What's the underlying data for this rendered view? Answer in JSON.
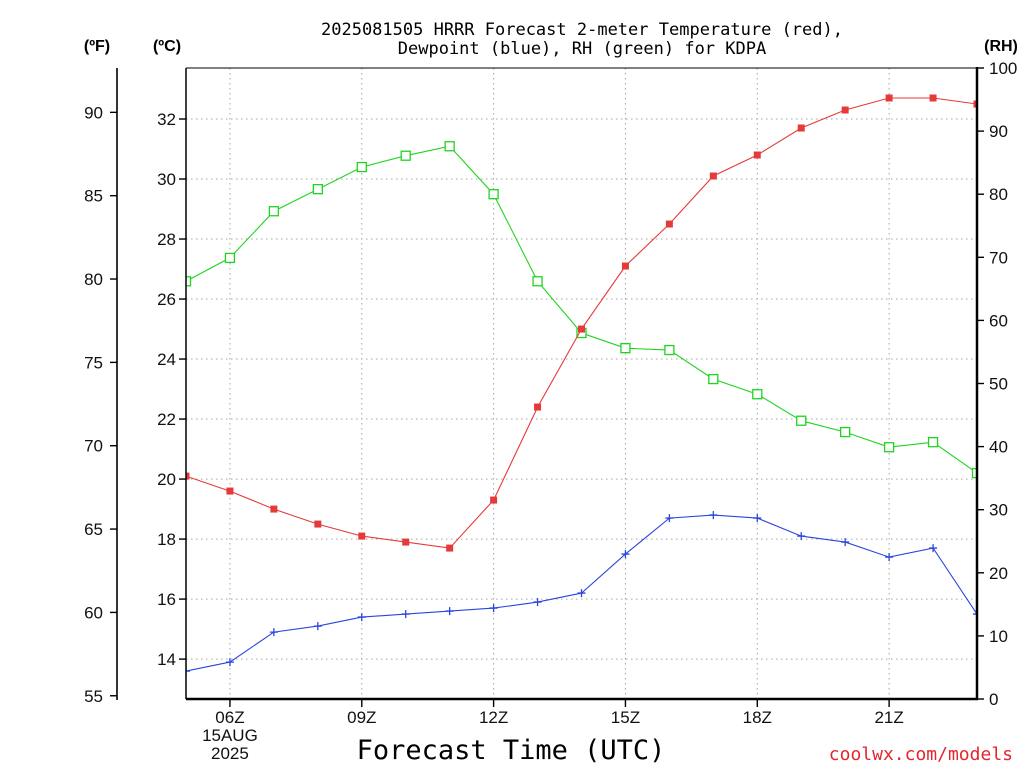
{
  "chart_data": {
    "type": "line",
    "title_lines": [
      "2025081505 HRRR Forecast 2-meter Temperature (red),",
      "Dewpoint (blue), RH (green) for KDPA"
    ],
    "xlabel": "Forecast Time (UTC)",
    "x": [
      5,
      6,
      7,
      8,
      9,
      10,
      11,
      12,
      13,
      14,
      15,
      16,
      17,
      18,
      19,
      20,
      21,
      22,
      23
    ],
    "xlim": [
      5,
      23
    ],
    "x_ticks": [
      {
        "hour": 6,
        "label": "06Z",
        "sub": [
          "15AUG",
          "2025"
        ]
      },
      {
        "hour": 9,
        "label": "09Z"
      },
      {
        "hour": 12,
        "label": "12Z"
      },
      {
        "hour": 15,
        "label": "15Z"
      },
      {
        "hour": 18,
        "label": "18Z"
      },
      {
        "hour": 21,
        "label": "21Z"
      }
    ],
    "y_left_f": {
      "label": "(ºF)",
      "ticks": [
        55,
        60,
        65,
        70,
        75,
        80,
        85,
        90
      ]
    },
    "y_left": {
      "label": "(ºC)",
      "ticks": [
        14,
        16,
        18,
        20,
        22,
        24,
        26,
        28,
        30,
        32
      ],
      "ylim": [
        12.67,
        33.7
      ]
    },
    "y_right": {
      "label": "(RH)",
      "ticks": [
        0,
        10,
        20,
        30,
        40,
        50,
        60,
        70,
        80,
        90,
        100
      ],
      "ylim": [
        0,
        100
      ]
    },
    "grid": true,
    "series": [
      {
        "color": "#e63a3a",
        "marker": "filled-square",
        "values": [
          20.1,
          19.6,
          19.0,
          18.5,
          18.1,
          17.9,
          17.7,
          19.3,
          22.4,
          25.0,
          27.1,
          28.5,
          30.1,
          30.8,
          31.7,
          32.3,
          32.7,
          32.7,
          32.5
        ]
      },
      {
        "color": "#2a45dc",
        "marker": "plus",
        "values": [
          13.6,
          13.9,
          14.9,
          15.1,
          15.4,
          15.5,
          15.6,
          15.7,
          15.9,
          16.2,
          17.5,
          18.7,
          18.8,
          18.7,
          18.1,
          17.9,
          17.4,
          17.7,
          15.5
        ]
      }
    ],
    "series_right": [
      {
        "color": "#1fd41f",
        "marker": "open-square",
        "values": [
          66.2,
          69.9,
          77.3,
          80.8,
          84.3,
          86.1,
          87.6,
          80.0,
          66.2,
          58.0,
          55.6,
          55.3,
          50.7,
          48.3,
          44.1,
          42.3,
          39.9,
          40.7,
          35.8
        ]
      }
    ]
  },
  "credit": "coolwx.com/models",
  "colors": {
    "credit": "#e3262e",
    "grid": "#a6a6a6",
    "axis": "#000000"
  }
}
